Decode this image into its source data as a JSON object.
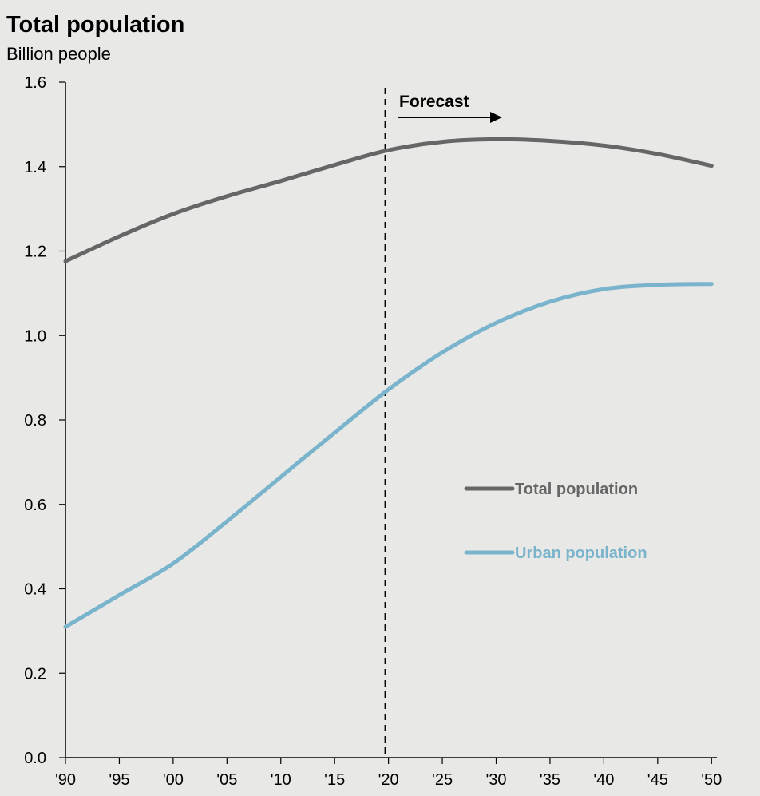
{
  "chart_data": {
    "type": "line",
    "title": "Total population",
    "subtitle": "Billion people",
    "xlabel": "",
    "ylabel": "",
    "x": [
      1990,
      1995,
      2000,
      2005,
      2010,
      2015,
      2020,
      2025,
      2030,
      2035,
      2040,
      2045,
      2050
    ],
    "x_tick_labels": [
      "'90",
      "'95",
      "'00",
      "'05",
      "'10",
      "'15",
      "'20",
      "'25",
      "'30",
      "'35",
      "'40",
      "'45",
      "'50"
    ],
    "xlim": [
      1990,
      2050.5
    ],
    "ylim": [
      0,
      1.6
    ],
    "y_ticks": [
      "0.0",
      "0.2",
      "0.4",
      "0.6",
      "0.8",
      "1.0",
      "1.2",
      "1.4",
      "1.6"
    ],
    "grid": false,
    "forecast": {
      "label": "Forecast",
      "start_x": 2019.7
    },
    "legend_position": "right-middle",
    "series": [
      {
        "name": "Total population",
        "color": "#666666",
        "values": [
          1.176,
          1.235,
          1.288,
          1.33,
          1.366,
          1.404,
          1.439,
          1.459,
          1.465,
          1.461,
          1.45,
          1.43,
          1.402
        ]
      },
      {
        "name": "Urban population",
        "color": "#7ab4cc",
        "values": [
          0.31,
          0.385,
          0.46,
          0.56,
          0.665,
          0.77,
          0.872,
          0.96,
          1.03,
          1.08,
          1.11,
          1.12,
          1.122
        ]
      }
    ]
  }
}
